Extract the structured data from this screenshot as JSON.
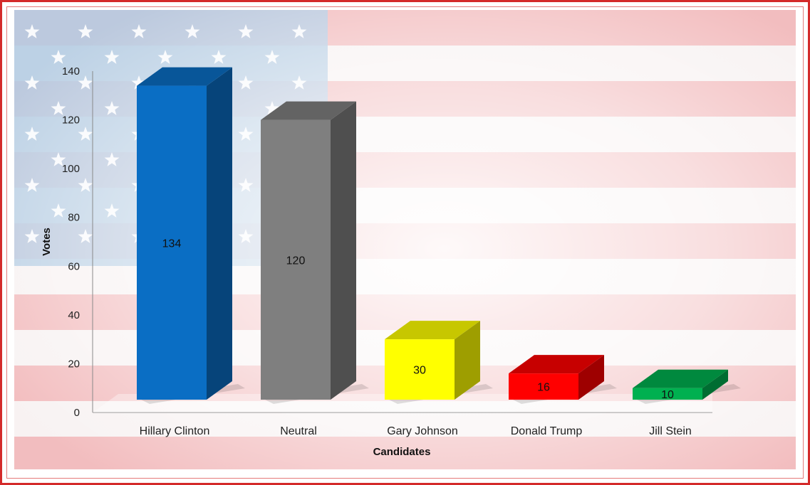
{
  "chart_data": {
    "type": "bar",
    "categories": [
      "Hillary Clinton",
      "Neutral",
      "Gary Johnson",
      "Donald Trump",
      "Jill Stein"
    ],
    "values": [
      134,
      120,
      30,
      16,
      10
    ],
    "data_labels": [
      "134",
      "120",
      "30",
      "16",
      "10"
    ],
    "bar_colors": [
      "#0a6ec4",
      "#7f7f7f",
      "#ffff00",
      "#ff0000",
      "#00b050"
    ],
    "xlabel": "Candidates",
    "ylabel": "Votes",
    "ylim": [
      0,
      140
    ],
    "yticks": [
      "0",
      "20",
      "40",
      "60",
      "80",
      "100",
      "120",
      "140"
    ],
    "style": "3d-column",
    "background": "american-flag",
    "grid": false,
    "legend": "none"
  }
}
